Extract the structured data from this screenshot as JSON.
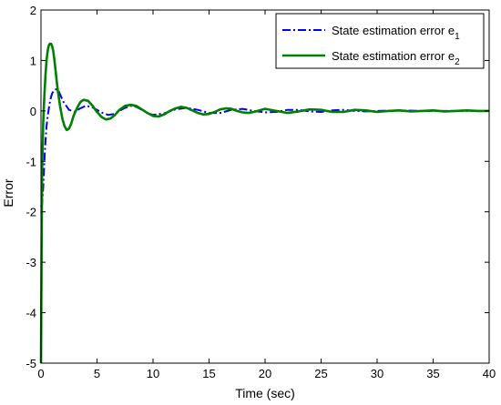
{
  "chart_data": {
    "type": "line",
    "title": "",
    "xlabel": "Time (sec)",
    "ylabel": "Error",
    "xlim": [
      0,
      40
    ],
    "ylim": [
      -5,
      2
    ],
    "xticks": [
      0,
      5,
      10,
      15,
      20,
      25,
      30,
      35,
      40
    ],
    "yticks": [
      -5,
      -4,
      -3,
      -2,
      -1,
      0,
      1,
      2
    ],
    "grid": false,
    "legend_position": "top-right",
    "series": [
      {
        "name": "State estimation error e1",
        "label_text": "State estimation error e",
        "label_subscript": "1",
        "color": "#0000ff",
        "line_style": "dash-dot",
        "x": [
          0,
          0.1,
          0.2,
          0.3,
          0.4,
          0.5,
          0.6,
          0.7,
          0.8,
          0.9,
          1.0,
          1.2,
          1.4,
          1.6,
          1.8,
          2.0,
          2.5,
          3.0,
          3.5,
          4.0,
          4.5,
          5.0,
          5.5,
          6.0,
          6.5,
          7.0,
          7.5,
          8.0,
          8.5,
          9.0,
          9.5,
          10.0,
          11,
          12,
          13,
          14,
          15,
          16,
          17,
          18,
          19,
          20,
          21,
          22,
          23,
          24,
          25,
          26,
          27,
          28,
          29,
          30,
          32,
          34,
          36,
          38,
          40
        ],
        "values": [
          -1.9,
          -1.85,
          -1.5,
          -1.0,
          -0.6,
          -0.3,
          -0.1,
          0.05,
          0.18,
          0.28,
          0.35,
          0.42,
          0.43,
          0.38,
          0.28,
          0.18,
          0.02,
          -0.02,
          0.05,
          0.1,
          0.08,
          0.02,
          -0.04,
          -0.08,
          -0.06,
          0.0,
          0.06,
          0.1,
          0.08,
          0.02,
          -0.04,
          -0.08,
          -0.05,
          0.03,
          0.06,
          0.02,
          -0.04,
          -0.04,
          0.02,
          0.04,
          0.0,
          -0.03,
          -0.02,
          0.02,
          0.02,
          -0.01,
          -0.02,
          0.01,
          0.02,
          0.0,
          -0.01,
          0.0,
          0.01,
          0.0,
          0.0,
          0.0,
          0.0
        ]
      },
      {
        "name": "State estimation error e2",
        "label_text": "State estimation error e",
        "label_subscript": "2",
        "color": "#008000",
        "line_style": "solid",
        "x": [
          0,
          0.05,
          0.1,
          0.2,
          0.3,
          0.4,
          0.5,
          0.6,
          0.7,
          0.8,
          0.9,
          1.0,
          1.1,
          1.2,
          1.3,
          1.4,
          1.5,
          1.7,
          1.9,
          2.1,
          2.3,
          2.5,
          2.7,
          2.9,
          3.2,
          3.5,
          3.8,
          4.2,
          4.6,
          5.0,
          5.4,
          5.8,
          6.2,
          6.6,
          7.0,
          7.5,
          8.0,
          8.5,
          9.0,
          9.5,
          10.0,
          10.5,
          11.0,
          11.5,
          12.0,
          12.5,
          13.0,
          13.5,
          14.0,
          14.5,
          15.0,
          15.5,
          16.0,
          16.5,
          17.0,
          17.5,
          18.0,
          18.5,
          19.0,
          19.5,
          20.0,
          21,
          22,
          23,
          24,
          25,
          26,
          27,
          28,
          29,
          30,
          31,
          32,
          33,
          34,
          35,
          36,
          37,
          38,
          39,
          40
        ],
        "values": [
          -5.0,
          -3.0,
          -1.2,
          -0.2,
          0.3,
          0.7,
          1.0,
          1.2,
          1.3,
          1.33,
          1.33,
          1.28,
          1.18,
          1.0,
          0.8,
          0.6,
          0.4,
          0.1,
          -0.15,
          -0.3,
          -0.38,
          -0.35,
          -0.25,
          -0.1,
          0.05,
          0.17,
          0.22,
          0.2,
          0.1,
          -0.02,
          -0.12,
          -0.17,
          -0.15,
          -0.08,
          0.02,
          0.1,
          0.12,
          0.1,
          0.03,
          -0.04,
          -0.1,
          -0.11,
          -0.07,
          0.0,
          0.05,
          0.08,
          0.06,
          0.01,
          -0.04,
          -0.07,
          -0.06,
          -0.02,
          0.03,
          0.05,
          0.04,
          0.0,
          -0.03,
          -0.04,
          -0.02,
          0.01,
          0.04,
          0.0,
          -0.04,
          -0.01,
          0.03,
          0.02,
          -0.02,
          -0.02,
          0.02,
          0.01,
          -0.02,
          0.0,
          0.01,
          -0.01,
          0.0,
          0.01,
          -0.01,
          0.0,
          0.01,
          0.0,
          0.0
        ]
      }
    ]
  }
}
